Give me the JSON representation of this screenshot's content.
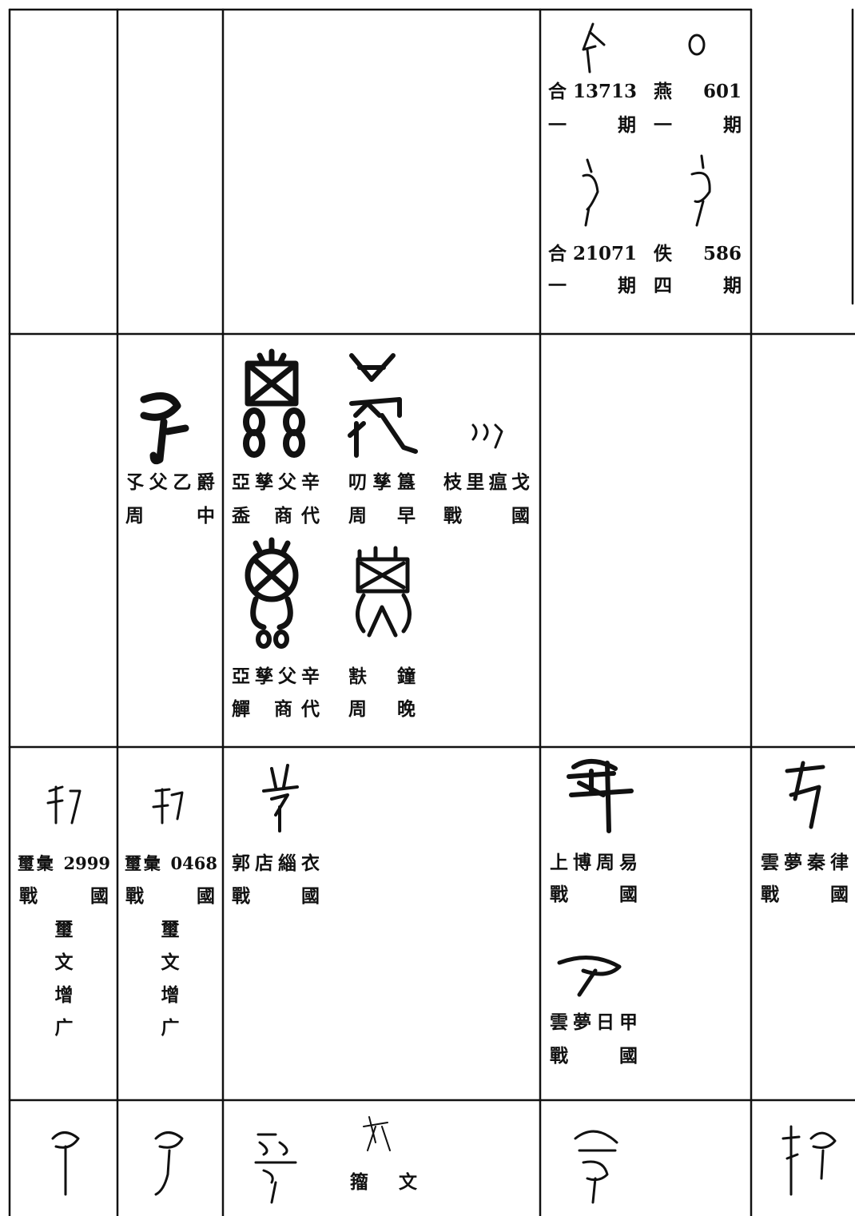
{
  "table": {
    "rows": [
      [
        {
          "entries": []
        },
        {
          "entries": []
        },
        {
          "entries": []
        },
        {
          "entries": [
            [
              "合 13713",
              "一 期"
            ],
            [
              "燕 601",
              "一 期"
            ],
            [
              "合 21071",
              "一 期"
            ],
            [
              "佚 586",
              "四 期"
            ]
          ]
        },
        {
          "entries": []
        }
      ],
      [
        {
          "entries": []
        },
        {
          "entries": [
            [
              "孓父乙爵",
              "周 中"
            ]
          ]
        },
        {
          "entries": [
            [
              "亞孳父辛",
              "盉 商代"
            ],
            [
              "叨孳簋",
              "周 早"
            ],
            [
              "枝里瘟戈",
              "戰 國"
            ],
            [
              "亞孳父辛",
              "觶 商代"
            ],
            [
              "㝬 鐘",
              "周 晚"
            ]
          ]
        },
        {
          "entries": []
        },
        {
          "entries": []
        }
      ],
      [
        {
          "entries": [
            [
              "璽彙 2999",
              "戰 國"
            ]
          ],
          "note": "璽文增广"
        },
        {
          "entries": [
            [
              "璽彙 0468",
              "戰 國"
            ]
          ],
          "note": "璽文增广"
        },
        {
          "entries": [
            [
              "郭店緇衣",
              "戰 國"
            ]
          ]
        },
        {
          "entries": [
            [
              "上博周易",
              "戰 國"
            ],
            [
              "雲夢日甲",
              "戰 國"
            ]
          ]
        },
        {
          "entries": [
            [
              "雲夢秦律",
              "戰 國"
            ]
          ]
        }
      ],
      [
        {
          "entries": []
        },
        {
          "entries": []
        },
        {
          "entries": [
            [
              "籀 文"
            ]
          ]
        },
        {
          "entries": []
        },
        {
          "entries": []
        }
      ]
    ]
  }
}
